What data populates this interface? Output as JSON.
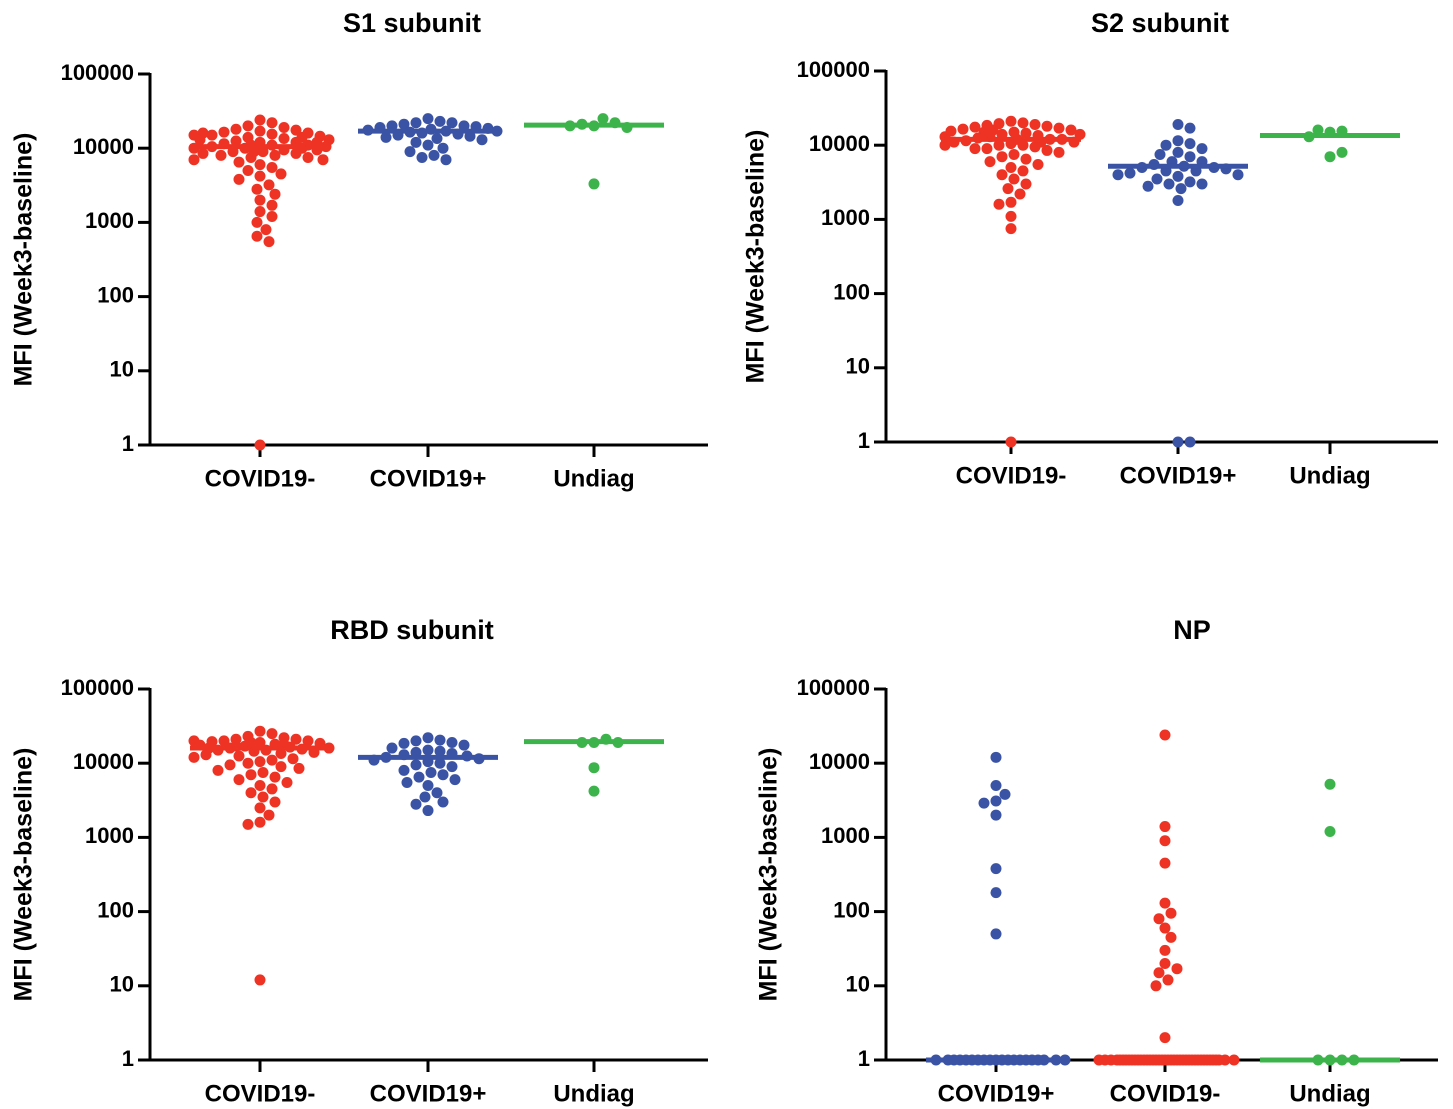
{
  "chart_data": [
    {
      "type": "strip",
      "title": "S1 subunit",
      "y_label": "MFI (Week3-baseline)",
      "log_scale": true,
      "ylim": [
        1,
        100000
      ],
      "yticks": [
        1,
        10,
        100,
        1000,
        10000,
        100000
      ],
      "categories": [
        "COVID19-",
        "COVID19+",
        "Undiag"
      ],
      "colors": [
        "#ee3324",
        "#3a53a4",
        "#3cb44b"
      ],
      "medians": [
        10500,
        17000,
        20500
      ],
      "values": [
        [
          24000,
          22000,
          20000,
          19000,
          18000,
          17500,
          17000,
          16500,
          16000,
          15500,
          15000,
          14500,
          14000,
          13500,
          13000,
          12500,
          12000,
          12000,
          11500,
          11000,
          11000,
          10500,
          10500,
          10000,
          10000,
          9500,
          9500,
          9000,
          9000,
          8500,
          8500,
          8000,
          8000,
          7500,
          7500,
          7000,
          7000,
          6500,
          6000,
          5500,
          5000,
          4500,
          4200,
          3800,
          3200,
          2800,
          2400,
          2000,
          1700,
          1400,
          1200,
          1000,
          800,
          650,
          550,
          1,
          13000,
          14000,
          15000,
          16000,
          12000,
          11000,
          10000,
          9000
        ],
        [
          25000,
          23000,
          22000,
          22000,
          21000,
          20000,
          20000,
          19500,
          19000,
          18500,
          18000,
          17500,
          17000,
          17000,
          16500,
          16000,
          15500,
          15000,
          14500,
          14000,
          13500,
          13000,
          12000,
          11000,
          10000,
          9000,
          8000,
          7500,
          7000
        ],
        [
          20000,
          25000,
          21000,
          22000,
          20000,
          19000,
          3300
        ]
      ]
    },
    {
      "type": "strip",
      "title": "S2 subunit",
      "y_label": "MFI (Week3-baseline)",
      "log_scale": true,
      "ylim": [
        1,
        100000
      ],
      "yticks": [
        1,
        10,
        100,
        1000,
        10000,
        100000
      ],
      "categories": [
        "COVID19-",
        "COVID19+",
        "Undiag"
      ],
      "colors": [
        "#ee3324",
        "#3a53a4",
        "#3cb44b"
      ],
      "medians": [
        12000,
        5200,
        13500
      ],
      "values": [
        [
          21000,
          20000,
          19500,
          19000,
          18500,
          18000,
          17500,
          17000,
          16500,
          16000,
          15500,
          15000,
          14500,
          14000,
          13500,
          13000,
          12500,
          12000,
          12000,
          11500,
          11000,
          11000,
          10500,
          10000,
          10000,
          9500,
          9000,
          9000,
          8500,
          8000,
          7500,
          7000,
          6500,
          6000,
          5500,
          5000,
          4500,
          4000,
          3500,
          3000,
          2600,
          2200,
          1700,
          1600,
          1100,
          750,
          1,
          13000,
          14000,
          15000,
          16000,
          12000,
          11000,
          10000
        ],
        [
          19000,
          17000,
          11500,
          10500,
          10000,
          9000,
          8000,
          7500,
          7000,
          6000,
          6000,
          5500,
          5200,
          5000,
          5000,
          4800,
          4500,
          4500,
          4200,
          4000,
          4000,
          3800,
          3500,
          3200,
          3000,
          3000,
          2800,
          2600,
          1800,
          1,
          1
        ],
        [
          15000,
          7000,
          8000,
          15500,
          16000,
          13000
        ]
      ]
    },
    {
      "type": "strip",
      "title": "RBD subunit",
      "y_label": "MFI (Week3-baseline)",
      "log_scale": true,
      "ylim": [
        1,
        100000
      ],
      "yticks": [
        1,
        10,
        100,
        1000,
        10000,
        100000
      ],
      "categories": [
        "COVID19-",
        "COVID19+",
        "Undiag"
      ],
      "colors": [
        "#ee3324",
        "#3a53a4",
        "#3cb44b"
      ],
      "medians": [
        16000,
        12000,
        19500
      ],
      "values": [
        [
          27000,
          25000,
          23000,
          22000,
          21000,
          21000,
          20000,
          20000,
          19500,
          19000,
          18500,
          18000,
          17500,
          17000,
          16500,
          16000,
          16000,
          15500,
          15000,
          15000,
          14500,
          14000,
          13500,
          13000,
          12500,
          12000,
          11500,
          11000,
          10500,
          10000,
          9500,
          9000,
          8500,
          8000,
          7500,
          7000,
          6500,
          6000,
          5500,
          5000,
          4500,
          4000,
          3500,
          3000,
          2500,
          2000,
          1600,
          1500,
          12,
          18000,
          19000,
          20000,
          17000,
          16000
        ],
        [
          22000,
          20500,
          20000,
          19000,
          18500,
          17500,
          16000,
          15000,
          14500,
          14000,
          13500,
          13000,
          12500,
          12000,
          11500,
          11000,
          10500,
          10000,
          9500,
          9000,
          8000,
          7500,
          7000,
          6500,
          6000,
          5500,
          5000,
          4000,
          3500,
          3000,
          2800,
          2300
        ],
        [
          19000,
          21000,
          19000,
          19000,
          8700,
          4200
        ]
      ]
    },
    {
      "type": "strip",
      "title": "NP",
      "y_label": "MFI (Week3-baseline)",
      "log_scale": true,
      "ylim": [
        1,
        100000
      ],
      "yticks": [
        1,
        10,
        100,
        1000,
        10000,
        100000
      ],
      "categories": [
        "COVID19+",
        "COVID19-",
        "Undiag"
      ],
      "colors": [
        "#3a53a4",
        "#ee3324",
        "#3cb44b"
      ],
      "medians": [
        1,
        1,
        1
      ],
      "values": [
        [
          12000,
          5000,
          3800,
          3100,
          2900,
          2000,
          380,
          180,
          50,
          1,
          1,
          1,
          1,
          1,
          1,
          1,
          1,
          1,
          1,
          1,
          1,
          1,
          1,
          1,
          1,
          1,
          1,
          1,
          1
        ],
        [
          24000,
          1400,
          900,
          450,
          130,
          95,
          80,
          60,
          45,
          30,
          20,
          17,
          15,
          12,
          10,
          2,
          1,
          1,
          1,
          1,
          1,
          1,
          1,
          1,
          1,
          1,
          1,
          1,
          1,
          1,
          1,
          1,
          1,
          1,
          1,
          1,
          1,
          1,
          1,
          1,
          1,
          1,
          1,
          1,
          1,
          1,
          1,
          1,
          1,
          1,
          1,
          1,
          1,
          1,
          1,
          1
        ],
        [
          5200,
          1200,
          1,
          1,
          1,
          1
        ]
      ]
    }
  ]
}
